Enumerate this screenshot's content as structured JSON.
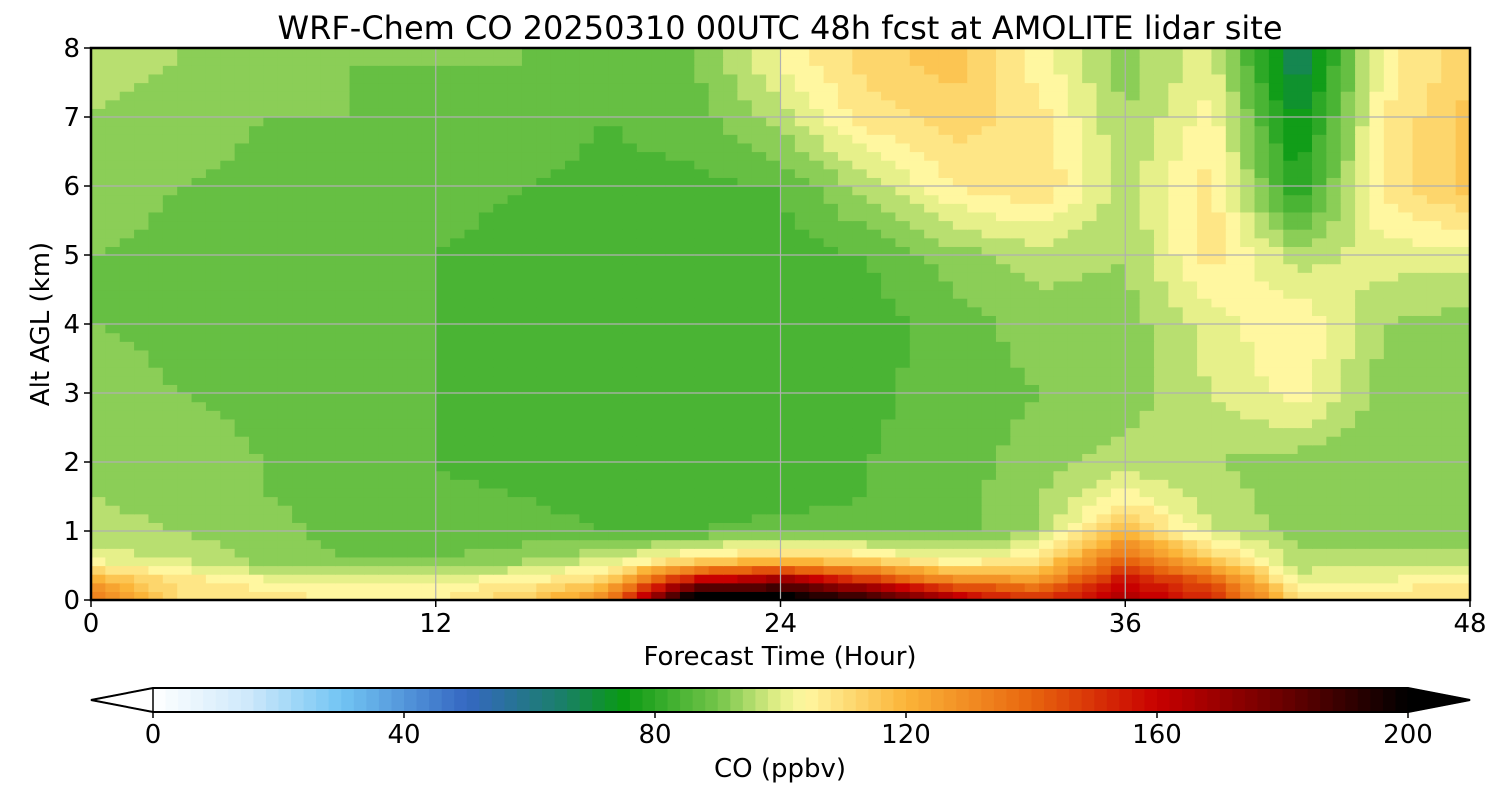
{
  "chart_data": {
    "type": "heatmap",
    "title": "WRF-Chem CO  20250310 00UTC 48h fcst at AMOLITE lidar site",
    "xlabel": "Forecast Time (Hour)",
    "ylabel": "Alt AGL (km)",
    "xlim": [
      0,
      48
    ],
    "ylim": [
      0,
      8
    ],
    "x_ticks": [
      0,
      12,
      24,
      36,
      48
    ],
    "y_ticks": [
      0,
      1,
      2,
      3,
      4,
      5,
      6,
      7,
      8
    ],
    "grid": true,
    "x": [
      0,
      3,
      6,
      9,
      12,
      15,
      18,
      21,
      24,
      27,
      30,
      33,
      36,
      39,
      42,
      45,
      48
    ],
    "y": [
      0.1,
      0.3,
      0.6,
      1,
      1.5,
      2,
      3,
      4,
      5,
      6,
      7,
      7.8
    ],
    "z": [
      [
        135,
        110,
        108,
        104,
        105,
        112,
        128,
        200,
        200,
        185,
        160,
        145,
        165,
        150,
        110,
        108,
        110
      ],
      [
        120,
        108,
        102,
        100,
        101,
        104,
        112,
        160,
        170,
        150,
        130,
        125,
        158,
        140,
        100,
        102,
        103
      ],
      [
        100,
        98,
        92,
        90,
        90,
        92,
        98,
        108,
        115,
        110,
        100,
        108,
        140,
        115,
        95,
        96,
        97
      ],
      [
        96,
        94,
        92,
        88,
        88,
        88,
        86,
        86,
        88,
        88,
        88,
        94,
        118,
        98,
        92,
        90,
        90
      ],
      [
        94,
        92,
        90,
        88,
        87,
        86,
        84,
        82,
        84,
        86,
        88,
        94,
        104,
        96,
        92,
        90,
        90
      ],
      [
        94,
        92,
        90,
        88,
        86,
        84,
        82,
        82,
        84,
        86,
        88,
        92,
        96,
        94,
        92,
        90,
        90
      ],
      [
        92,
        90,
        89,
        88,
        86,
        85,
        84,
        84,
        84,
        85,
        88,
        90,
        92,
        98,
        104,
        92,
        92
      ],
      [
        90,
        89,
        88,
        88,
        86,
        85,
        84,
        84,
        82,
        84,
        88,
        92,
        92,
        100,
        106,
        94,
        92
      ],
      [
        90,
        89,
        88,
        88,
        86,
        85,
        84,
        84,
        84,
        86,
        92,
        96,
        94,
        108,
        96,
        100,
        100
      ],
      [
        92,
        90,
        89,
        88,
        87,
        86,
        85,
        85,
        86,
        96,
        106,
        110,
        96,
        108,
        78,
        108,
        116
      ],
      [
        94,
        92,
        90,
        90,
        88,
        88,
        86,
        88,
        96,
        108,
        112,
        108,
        94,
        104,
        72,
        106,
        116
      ],
      [
        96,
        94,
        92,
        90,
        90,
        90,
        88,
        90,
        102,
        112,
        116,
        104,
        92,
        100,
        66,
        104,
        112
      ]
    ],
    "colorbar": {
      "label": "CO  (ppbv)",
      "min": 0,
      "max": 200,
      "ticks": [
        0,
        40,
        80,
        120,
        160,
        200
      ],
      "extend": "both",
      "stops": [
        {
          "v": 0,
          "c": "#ffffff"
        },
        {
          "v": 15,
          "c": "#cfe9fb"
        },
        {
          "v": 30,
          "c": "#72c5f3"
        },
        {
          "v": 50,
          "c": "#3567c2"
        },
        {
          "v": 65,
          "c": "#1a7f6a"
        },
        {
          "v": 75,
          "c": "#0a9a14"
        },
        {
          "v": 90,
          "c": "#74c54a"
        },
        {
          "v": 100,
          "c": "#e6f08a"
        },
        {
          "v": 104,
          "c": "#fff7a0"
        },
        {
          "v": 120,
          "c": "#fbb438"
        },
        {
          "v": 140,
          "c": "#e8650e"
        },
        {
          "v": 160,
          "c": "#c80000"
        },
        {
          "v": 180,
          "c": "#6a0000"
        },
        {
          "v": 200,
          "c": "#000000"
        }
      ]
    }
  }
}
